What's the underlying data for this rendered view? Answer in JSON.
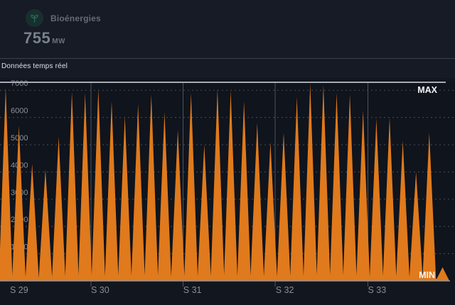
{
  "header": {
    "title": "Bioénergies",
    "value": "755",
    "unit": "MW"
  },
  "status_bar": {
    "label": "Données temps réel"
  },
  "chart_data": {
    "type": "area",
    "series_name": "Bioénergies",
    "title": "",
    "xlabel": "",
    "ylabel": "",
    "unit": "MW",
    "color": "#e07a1c",
    "grid": "dashed",
    "x_tick_labels": [
      "S 29",
      "S 30",
      "S 31",
      "S 32",
      "S 33"
    ],
    "y_ticks": [
      1000,
      2000,
      3000,
      4000,
      5000,
      6000,
      7000
    ],
    "ylim": [
      0,
      7300
    ],
    "max_label": "MAX",
    "min_label": "MIN",
    "values": [
      7100,
      5700,
      4300,
      4100,
      5300,
      6950,
      6900,
      7050,
      6600,
      6050,
      6500,
      6850,
      6200,
      5550,
      6900,
      5000,
      7050,
      7000,
      6600,
      5800,
      5100,
      5450,
      6750,
      7250,
      7200,
      6900,
      6850,
      6250,
      5950,
      6000,
      5150,
      4000,
      5450,
      500
    ]
  }
}
